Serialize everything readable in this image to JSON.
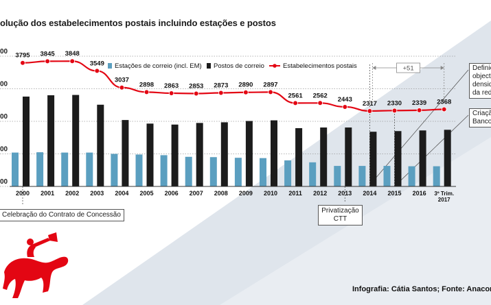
{
  "title": "olução dos estabelecimentos postais  incluindo estações e postos",
  "chart_data": {
    "type": "bar+line",
    "categories": [
      "2000",
      "2001",
      "2002",
      "2003",
      "2004",
      "2005",
      "2006",
      "2007",
      "2008",
      "2009",
      "2010",
      "2011",
      "2012",
      "2013",
      "2014",
      "2015",
      "2016",
      "3º Trim.\n2017"
    ],
    "ylim": [
      0,
      4000
    ],
    "y_tick_labels": [
      "00",
      "00",
      "00",
      "00",
      "00"
    ],
    "series": [
      {
        "name": "Estações de correio (incl. EM)",
        "type": "bar",
        "color": "#5b9fc0",
        "values": [
          1040,
          1050,
          1040,
          1040,
          1000,
          980,
          960,
          910,
          900,
          880,
          870,
          800,
          740,
          630,
          630,
          630,
          620,
          620
        ]
      },
      {
        "name": "Postos de correio",
        "type": "bar",
        "color": "#1c1c1c",
        "values": [
          2760,
          2800,
          2810,
          2510,
          2040,
          1930,
          1900,
          1950,
          1970,
          2010,
          2030,
          1790,
          1810,
          1810,
          1680,
          1700,
          1720,
          1740
        ]
      },
      {
        "name": "Estabelecimentos postais",
        "type": "line",
        "color": "#e30613",
        "values": [
          3795,
          3845,
          3848,
          3549,
          3037,
          2898,
          2863,
          2853,
          2873,
          2890,
          2897,
          2561,
          2562,
          2443,
          2317,
          2330,
          2339,
          2368
        ]
      }
    ],
    "annotations": {
      "difference_label": "+51",
      "concession": "Celebração do Contrato de Concessão",
      "privatization": [
        "Privatização",
        "CTT"
      ],
      "definition": [
        "Definiç",
        "objectiv",
        "densid",
        "da rede"
      ],
      "creation": [
        "Criação",
        "Banco"
      ]
    }
  },
  "credit": "Infografia: Cátia Santos; Fonte: Anacom",
  "colors": {
    "red": "#e30613",
    "blue": "#5b9fc0",
    "black": "#1c1c1c",
    "band": "#d7dee6"
  }
}
